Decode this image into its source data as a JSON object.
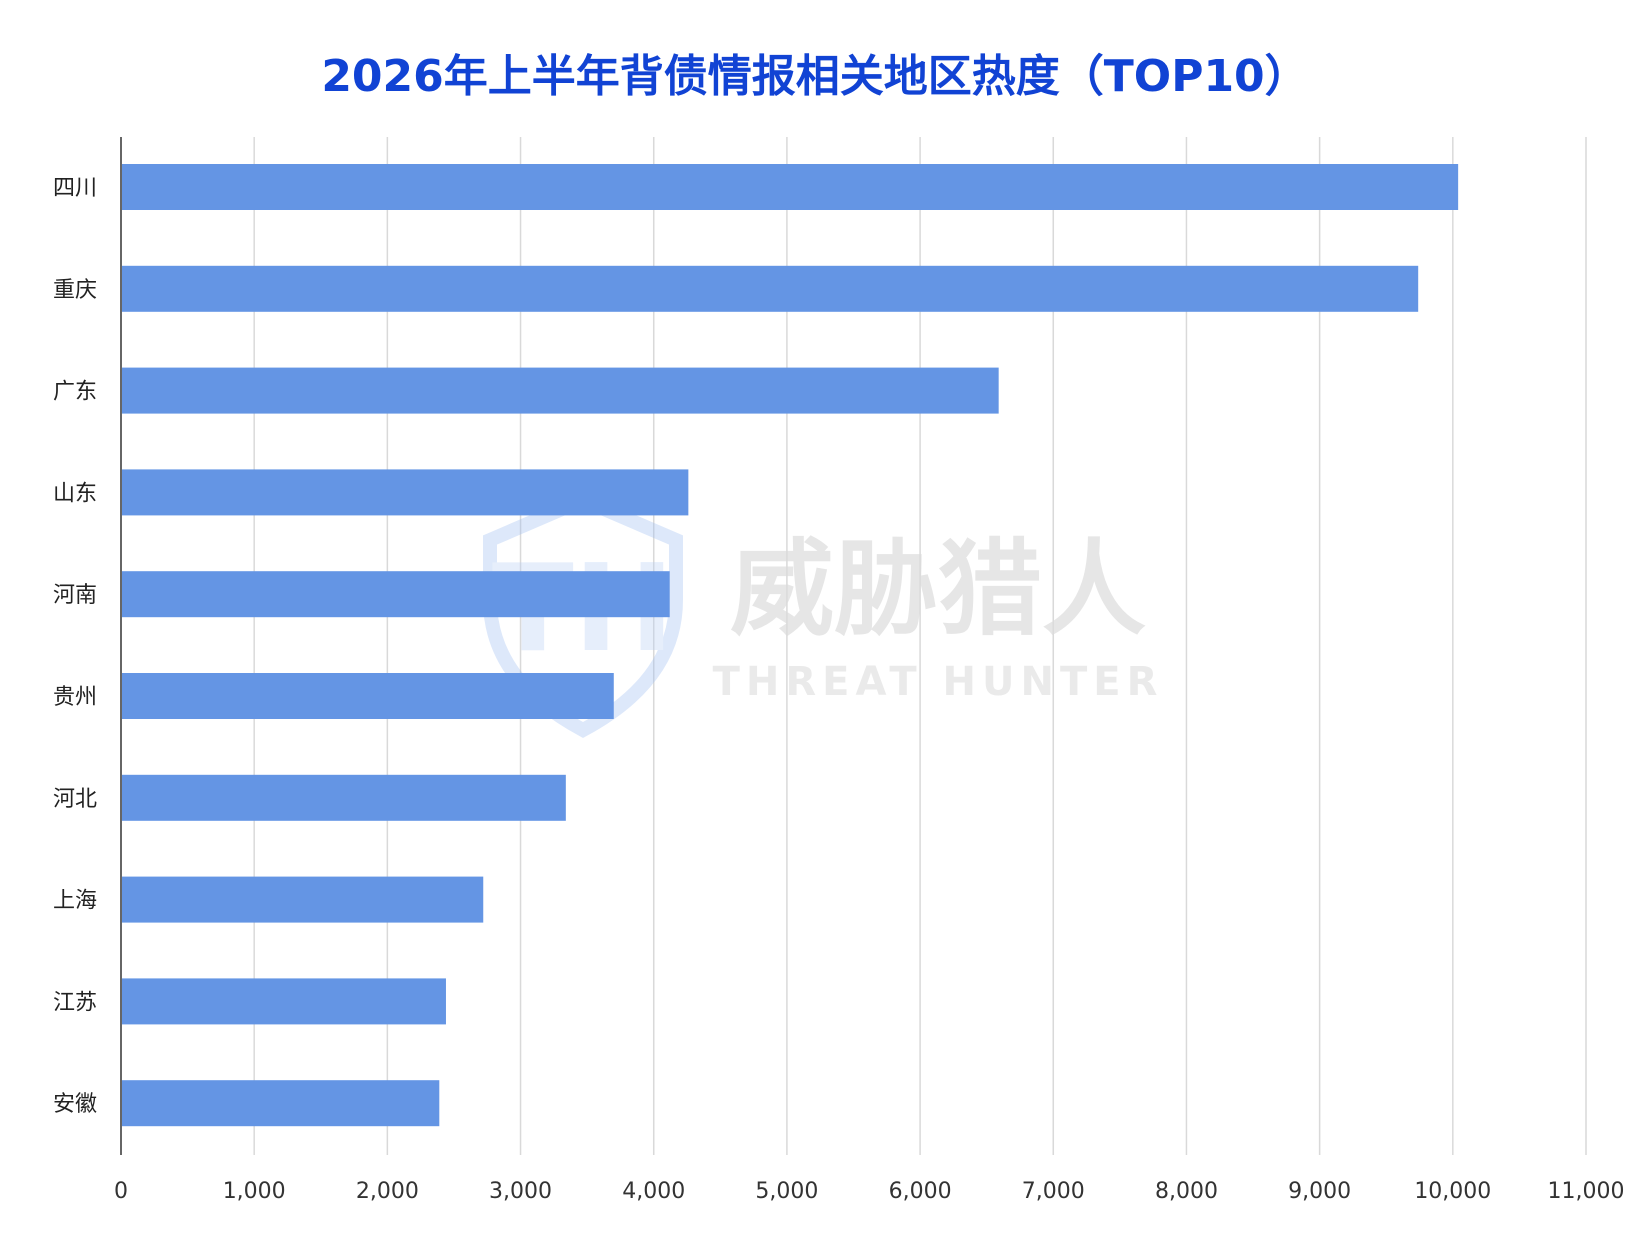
{
  "chart_data": {
    "type": "bar",
    "orientation": "horizontal",
    "title": "2026年上半年背债情报相关地区热度（TOP10）",
    "categories": [
      "四川",
      "重庆",
      "广东",
      "山东",
      "河南",
      "贵州",
      "河北",
      "上海",
      "江苏",
      "安徽"
    ],
    "values": [
      10040,
      9740,
      6590,
      4260,
      4120,
      3700,
      3340,
      2720,
      2440,
      2390
    ],
    "xlim": [
      0,
      11000
    ],
    "x_ticks": [
      "0",
      "1,000",
      "2,000",
      "3,000",
      "4,000",
      "5,000",
      "6,000",
      "7,000",
      "8,000",
      "9,000",
      "10,000",
      "11,000"
    ],
    "grid": "vertical",
    "bar_color": "#6495e4",
    "title_color": "#1143d4"
  },
  "watermark": {
    "brand_cn": "威胁猎人",
    "brand_en": "THREAT HUNTER",
    "logo_letters": "TH",
    "color": "#dcdcdc"
  }
}
